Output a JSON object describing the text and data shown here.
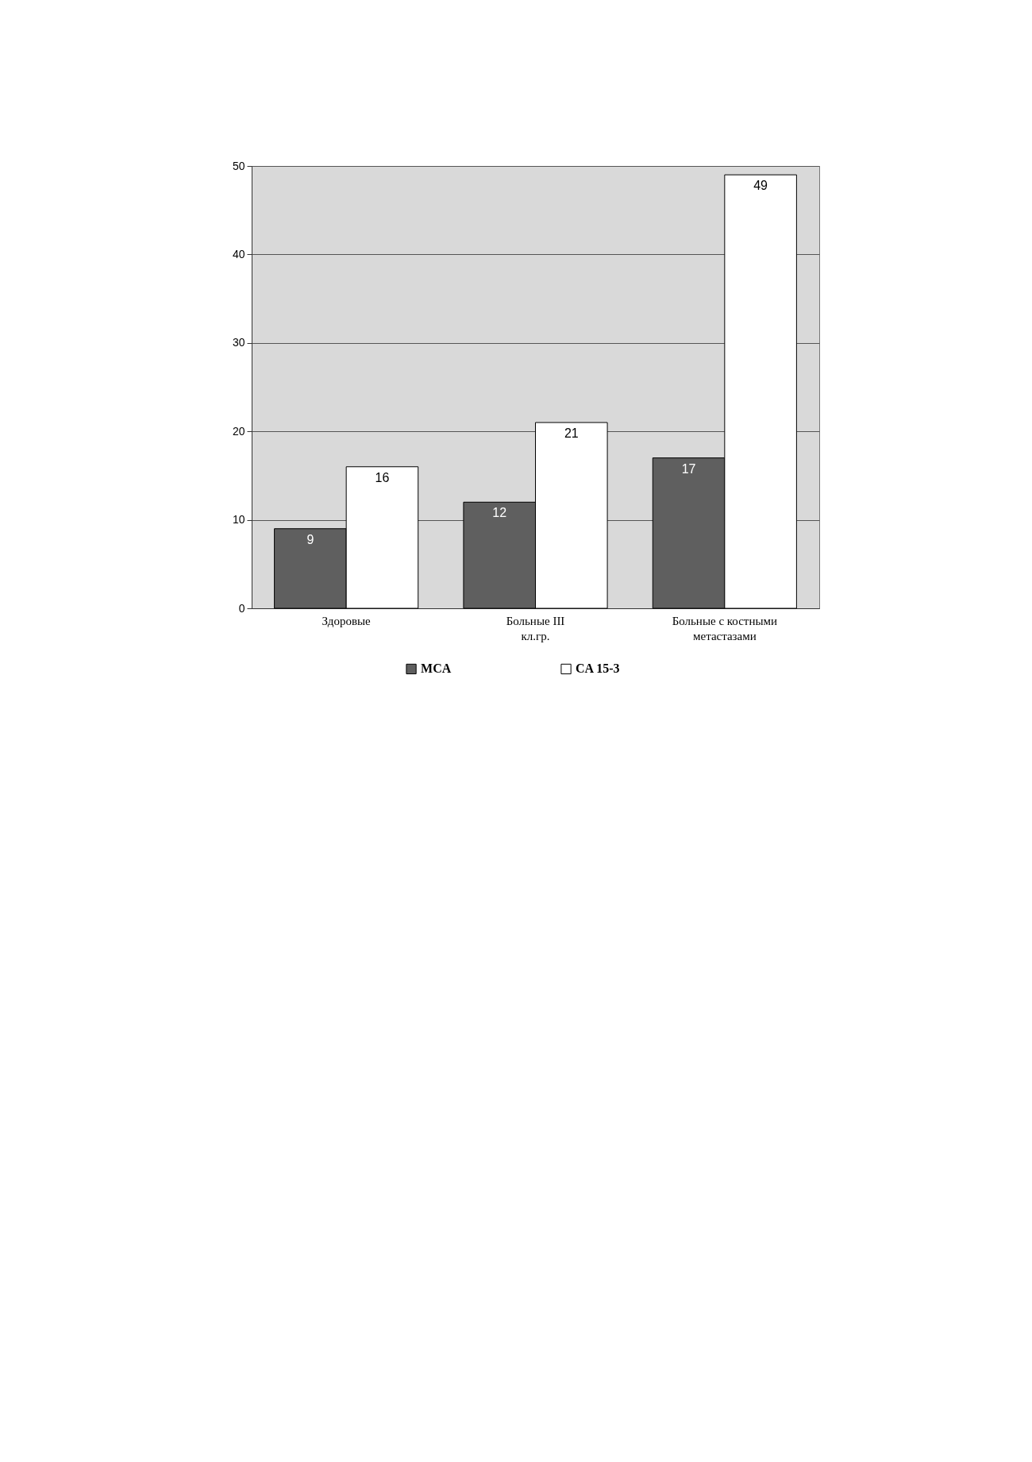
{
  "chart_data": {
    "type": "bar",
    "categories": [
      "Здоровые",
      "Больные III\nкл.гр.",
      "Больные с костными\nметастазами"
    ],
    "series": [
      {
        "name": "MCA",
        "color": "#5f5f5f",
        "values": [
          9,
          12,
          17
        ]
      },
      {
        "name": "CA 15-3",
        "color": "#ffffff",
        "values": [
          16,
          21,
          49
        ]
      }
    ],
    "ylim": [
      0,
      50
    ],
    "yticks": [
      0,
      10,
      20,
      30,
      40,
      50
    ],
    "grid": "y",
    "legend": "bottom",
    "data_labels": true
  }
}
